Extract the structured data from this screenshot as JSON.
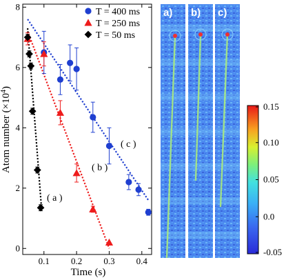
{
  "chart_data": [
    {
      "type": "scatter",
      "title": "",
      "xlabel": "Time (s)",
      "ylabel": "Atom number (×10",
      "ylabel_exponent": "4",
      "ylabel_close": ")",
      "xlim": [
        0.035,
        0.43
      ],
      "ylim": [
        -0.2,
        8.1
      ],
      "xticks": [
        0.1,
        0.2,
        0.3,
        0.4
      ],
      "xtick_labels": [
        "0.1",
        "0.2",
        "0.3",
        "0.4"
      ],
      "yticks": [
        0,
        2,
        4,
        6,
        8
      ],
      "ytick_labels": [
        "0",
        "2",
        "4",
        "6",
        "8"
      ],
      "grid": false,
      "legend_position": "top-right",
      "series": [
        {
          "name": "T = 400 ms",
          "marker": "circle",
          "color": "#1f3fd0",
          "fit_label": "( c )",
          "x": [
            0.1,
            0.15,
            0.18,
            0.2,
            0.25,
            0.3,
            0.36,
            0.39,
            0.42
          ],
          "y": [
            6.5,
            5.6,
            6.15,
            5.95,
            4.35,
            3.4,
            2.2,
            1.95,
            1.2
          ],
          "err": [
            0.7,
            0.5,
            0.6,
            0.7,
            0.5,
            0.6,
            0.25,
            0.2,
            0.1
          ],
          "fit": [
            [
              0.05,
              7.6
            ],
            [
              0.42,
              1.6
            ]
          ]
        },
        {
          "name": "T = 250 ms",
          "marker": "triangle",
          "color": "#ee1c1c",
          "fit_label": "( b )",
          "x": [
            0.05,
            0.1,
            0.15,
            0.2,
            0.25,
            0.3
          ],
          "y": [
            6.95,
            6.45,
            4.5,
            2.5,
            1.3,
            0.2
          ],
          "err": [
            0.2,
            0.4,
            0.4,
            0.3,
            0.1,
            0.0
          ],
          "fit": [
            [
              0.05,
              7.2
            ],
            [
              0.3,
              0.0
            ]
          ]
        },
        {
          "name": "T = 50 ms",
          "marker": "diamond",
          "color": "#000000",
          "fit_label": "( a )",
          "x": [
            0.05,
            0.055,
            0.06,
            0.065,
            0.08,
            0.09
          ],
          "y": [
            7.0,
            6.45,
            6.05,
            4.55,
            2.6,
            1.35
          ],
          "err": [
            0.1,
            0.1,
            0.1,
            0.1,
            0.1,
            0.1
          ],
          "fit": [
            [
              0.05,
              7.3
            ],
            [
              0.092,
              1.4
            ]
          ]
        }
      ]
    },
    {
      "type": "heatmap",
      "panels": [
        {
          "label": "a)"
        },
        {
          "label": "b)"
        },
        {
          "label": "c)"
        }
      ],
      "colorbar": {
        "ticks": [
          0.15,
          0.1,
          0.05,
          0.0,
          -0.05
        ],
        "tick_labels": [
          "0.15",
          "0.10",
          "0.05",
          "0.0",
          "-0.05"
        ],
        "range": [
          -0.05,
          0.15
        ]
      }
    }
  ]
}
